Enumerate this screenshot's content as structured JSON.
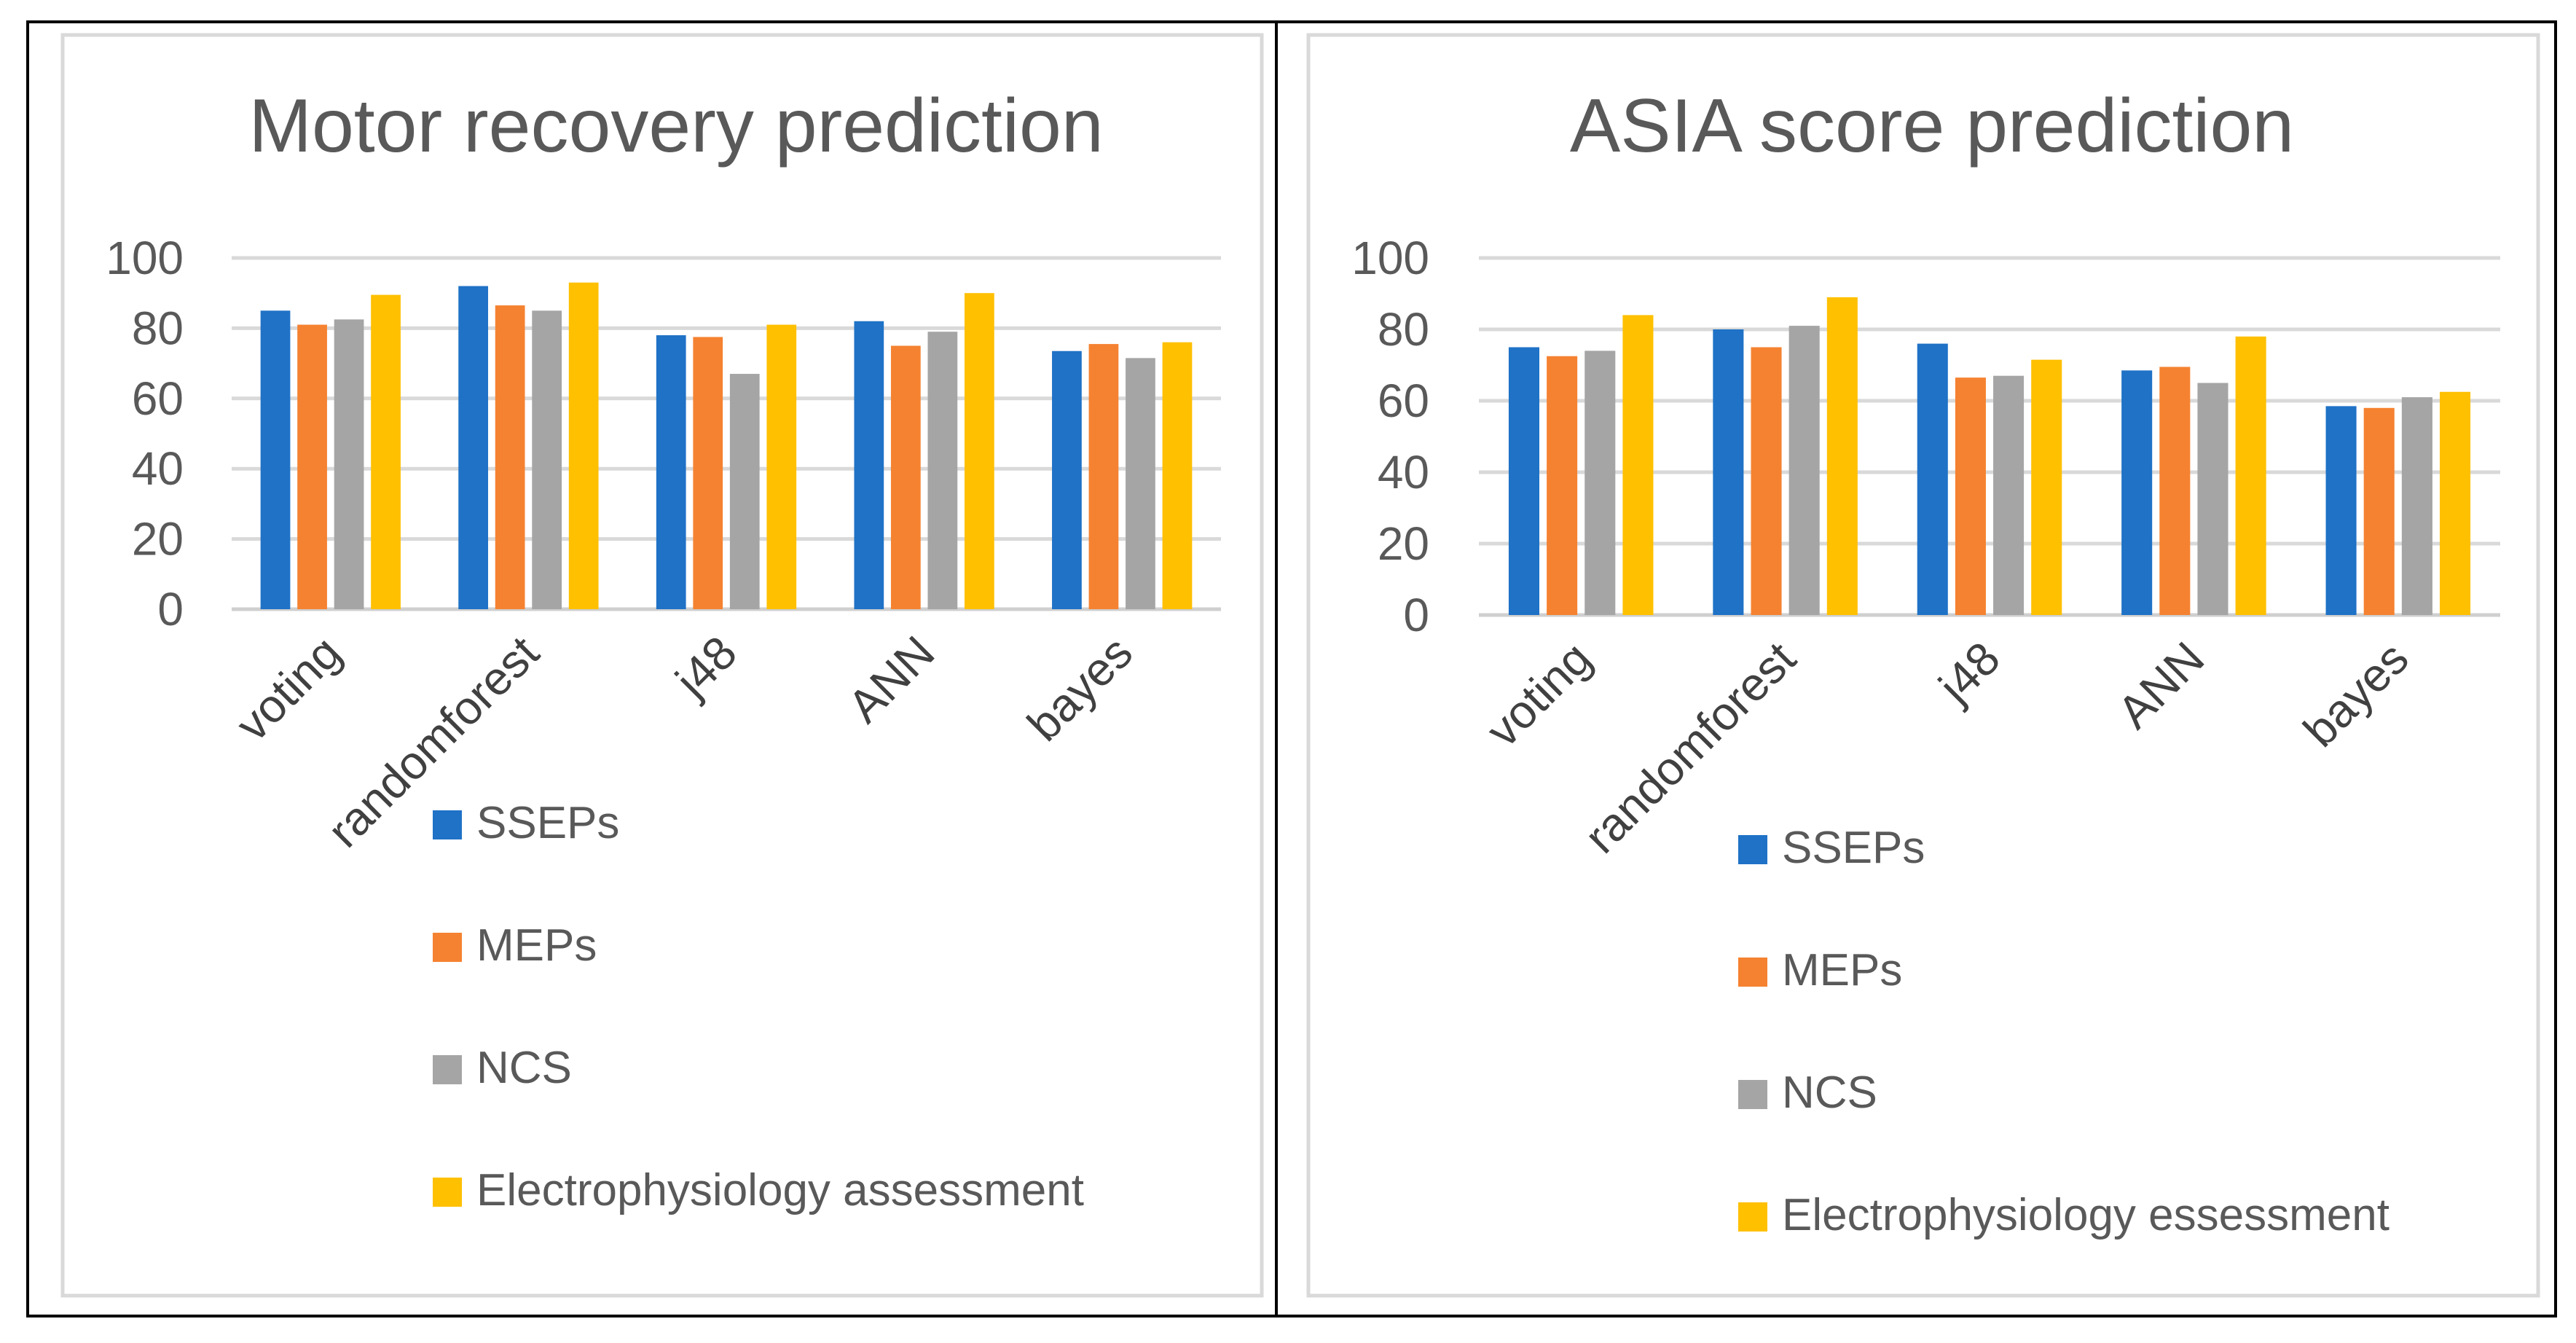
{
  "chart_data": [
    {
      "type": "bar",
      "title": "Motor recovery prediction",
      "categories": [
        "voting",
        "randomforest",
        "j48",
        "ANN",
        "bayes"
      ],
      "yticks": [
        "0",
        "20",
        "40",
        "60",
        "80",
        "100"
      ],
      "ylim": [
        0,
        100
      ],
      "grid": true,
      "legend_position": "bottom",
      "series": [
        {
          "name": "SSEPs",
          "color": "#1f72c6",
          "values": [
            85,
            92,
            78,
            82,
            73.5
          ]
        },
        {
          "name": "MEPs",
          "color": "#f58231",
          "values": [
            81,
            86.5,
            77.5,
            75,
            75.5
          ]
        },
        {
          "name": "NCS",
          "color": "#a5a5a5",
          "values": [
            82.5,
            85,
            67,
            79,
            71.5
          ]
        },
        {
          "name": "Electrophysiology assessment",
          "color": "#ffc000",
          "values": [
            89.5,
            93,
            81,
            90,
            76
          ]
        }
      ]
    },
    {
      "type": "bar",
      "title": "ASIA score prediction",
      "categories": [
        "voting",
        "randomforest",
        "j48",
        "ANN",
        "bayes"
      ],
      "yticks": [
        "0",
        "20",
        "40",
        "60",
        "80",
        "100"
      ],
      "ylim": [
        0,
        100
      ],
      "grid": true,
      "legend_position": "bottom",
      "series": [
        {
          "name": "SSEPs",
          "color": "#1f72c6",
          "values": [
            75,
            80,
            76,
            68.5,
            58.5
          ]
        },
        {
          "name": "MEPs",
          "color": "#f58231",
          "values": [
            72.5,
            75,
            66.5,
            69.5,
            58
          ]
        },
        {
          "name": "NCS",
          "color": "#a5a5a5",
          "values": [
            74,
            81,
            67,
            65,
            61
          ]
        },
        {
          "name": "Electrophysiology essessment",
          "color": "#ffc000",
          "values": [
            84,
            89,
            71.5,
            78,
            62.5
          ]
        }
      ]
    }
  ]
}
